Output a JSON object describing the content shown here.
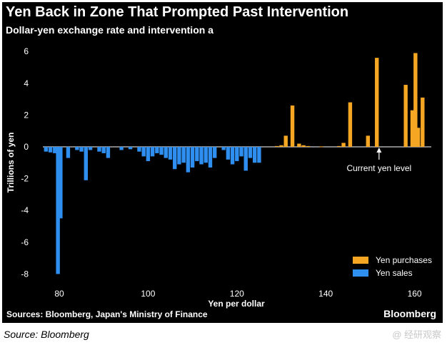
{
  "header": {
    "title": "Yen Back in Zone That Prompted Past Intervention",
    "subtitle": "Dollar-yen exchange rate and intervention a"
  },
  "footer": {
    "sources": "Sources: Bloomberg, Japan's Ministry of Finance",
    "brand": "Bloomberg"
  },
  "caption": "Source: Bloomberg",
  "watermark": "@ 经研观察",
  "colors": {
    "background": "#000000",
    "purchases": "#f5a623",
    "sales": "#2f8ff0",
    "zero_line": "#ffffff"
  },
  "chart_data": {
    "type": "bar",
    "title": "Yen Back in Zone That Prompted Past Intervention",
    "subtitle": "Dollar-yen exchange rate and intervention a",
    "xlabel": "Yen per dollar",
    "ylabel": "Trillions of yen",
    "xlim": [
      75,
      165
    ],
    "ylim": [
      -9,
      6.5
    ],
    "xticks": [
      80,
      100,
      120,
      140,
      160
    ],
    "yticks": [
      -8,
      -6,
      -4,
      -2,
      0,
      2,
      4,
      6
    ],
    "legend": {
      "position": "bottom-right",
      "entries": [
        "Yen purchases",
        "Yen sales"
      ]
    },
    "annotation": {
      "text": "Current yen level",
      "x": 152
    },
    "series": [
      {
        "name": "Yen purchases",
        "color": "#f5a623",
        "points": [
          [
            129,
            0.05
          ],
          [
            130,
            0.1
          ],
          [
            131,
            0.7
          ],
          [
            132.5,
            2.6
          ],
          [
            134,
            0.2
          ],
          [
            135,
            0.1
          ],
          [
            136,
            0.05
          ],
          [
            139,
            0.03
          ],
          [
            143,
            0.05
          ],
          [
            144,
            0.25
          ],
          [
            145.5,
            2.8
          ],
          [
            149.5,
            0.7
          ],
          [
            151.5,
            5.6
          ],
          [
            158,
            3.9
          ],
          [
            159.5,
            2.3
          ],
          [
            160.2,
            5.9
          ],
          [
            160.8,
            1.2
          ],
          [
            161.8,
            3.1
          ]
        ]
      },
      {
        "name": "Yen sales",
        "color": "#2f8ff0",
        "points": [
          [
            77,
            -0.3
          ],
          [
            78,
            -0.35
          ],
          [
            79,
            -0.4
          ],
          [
            79.7,
            -8.0
          ],
          [
            80.3,
            -4.5
          ],
          [
            82,
            -0.7
          ],
          [
            84,
            -0.2
          ],
          [
            85,
            -0.3
          ],
          [
            86,
            -2.1
          ],
          [
            87,
            -0.2
          ],
          [
            89,
            -0.3
          ],
          [
            90,
            -0.4
          ],
          [
            91,
            -0.7
          ],
          [
            94,
            -0.2
          ],
          [
            96,
            -0.15
          ],
          [
            98,
            -0.3
          ],
          [
            99,
            -0.6
          ],
          [
            100,
            -0.9
          ],
          [
            101,
            -0.6
          ],
          [
            102,
            -0.4
          ],
          [
            103,
            -0.5
          ],
          [
            104,
            -0.7
          ],
          [
            105,
            -0.8
          ],
          [
            106,
            -1.4
          ],
          [
            107,
            -1.1
          ],
          [
            108,
            -1.0
          ],
          [
            109,
            -1.6
          ],
          [
            110,
            -1.3
          ],
          [
            111,
            -0.9
          ],
          [
            112,
            -1.1
          ],
          [
            113,
            -1.0
          ],
          [
            114,
            -1.3
          ],
          [
            115,
            -0.7
          ],
          [
            117,
            -0.2
          ],
          [
            118,
            -0.8
          ],
          [
            119,
            -1.1
          ],
          [
            120,
            -0.9
          ],
          [
            121,
            -0.6
          ],
          [
            122,
            -1.5
          ],
          [
            123,
            -0.7
          ],
          [
            124,
            -1.0
          ],
          [
            125,
            -1.0
          ]
        ]
      }
    ]
  }
}
